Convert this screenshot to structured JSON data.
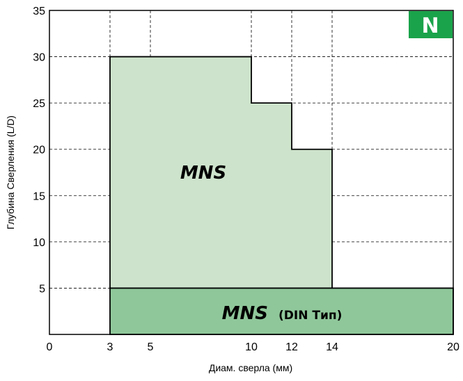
{
  "badge": {
    "text": "N",
    "color": "#1aa34a"
  },
  "chart_data": {
    "type": "area",
    "xlabel": "Диам. сверла (мм)",
    "ylabel": "Глубина Сверления (L/D)",
    "xlim": [
      0,
      20
    ],
    "ylim": [
      0,
      35
    ],
    "x_ticks": [
      0,
      3,
      5,
      10,
      12,
      14,
      20
    ],
    "y_ticks": [
      5,
      10,
      15,
      20,
      25,
      30,
      35
    ],
    "grid": true,
    "grid_style": "dashed",
    "regions": [
      {
        "label": "MNS",
        "sublabel": "",
        "color": "#cde3cb",
        "steps": [
          {
            "x_from": 3,
            "x_to": 10,
            "y": 30
          },
          {
            "x_from": 10,
            "x_to": 12,
            "y": 25
          },
          {
            "x_from": 12,
            "x_to": 14,
            "y": 20
          }
        ],
        "y_base": 5
      },
      {
        "label": "MNS",
        "sublabel": "(DIN Тип)",
        "color": "#8fc79a",
        "steps": [
          {
            "x_from": 3,
            "x_to": 20,
            "y": 5
          }
        ],
        "y_base": 0
      }
    ]
  }
}
